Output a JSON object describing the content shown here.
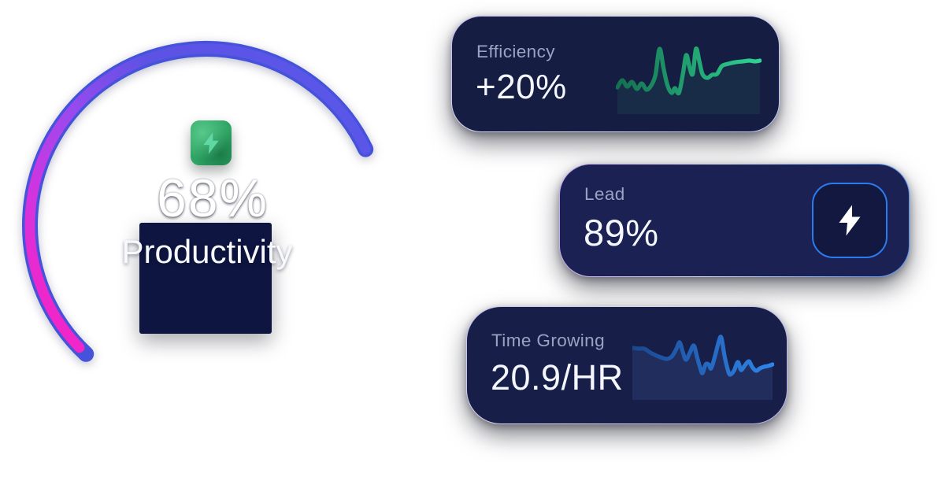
{
  "theme": {
    "page_bg": "#ffffff",
    "label_color": "#9ba2c2",
    "value_color": "#f5f7ff",
    "card_bg_efficiency": "#161d42",
    "card_bg_lead": "#1b2152",
    "card_bg_time_growing": "#171e48"
  },
  "gauge": {
    "percent": "68%",
    "title": "Productivity",
    "badge_icon": "lightning-bolt-icon",
    "colors": {
      "arc_base": "#4552da",
      "arc_top": "#5a57ea",
      "arc_upper": "#5c52e4",
      "arc_mid": "#9b49ee",
      "arc_lower": "#cf35e0",
      "arc_end": "#f026c9",
      "panel": "#0d1540",
      "badge": "#2fa564",
      "badge_bolt": "#5fd8a4"
    }
  },
  "cards": [
    {
      "id": "efficiency",
      "label": "Efficiency",
      "value": "+20%",
      "chart": {
        "type": "sparkline",
        "color_start": "#146f50",
        "color_end": "#2ed492",
        "fill": "rgba(46,212,146,0.08)",
        "points": [
          [
            2,
            58
          ],
          [
            8,
            49
          ],
          [
            14,
            57
          ],
          [
            20,
            51
          ],
          [
            26,
            60
          ],
          [
            32,
            53
          ],
          [
            38,
            61
          ],
          [
            44,
            55
          ],
          [
            49,
            42
          ],
          [
            54,
            9
          ],
          [
            59,
            34
          ],
          [
            64,
            56
          ],
          [
            69,
            65
          ],
          [
            73,
            59
          ],
          [
            78,
            65
          ],
          [
            83,
            40
          ],
          [
            87,
            17
          ],
          [
            91,
            32
          ],
          [
            95,
            41
          ],
          [
            99,
            9
          ],
          [
            103,
            24
          ],
          [
            107,
            41
          ],
          [
            113,
            46
          ],
          [
            119,
            42
          ],
          [
            125,
            41
          ],
          [
            131,
            31
          ],
          [
            139,
            28
          ],
          [
            148,
            26
          ],
          [
            157,
            25
          ],
          [
            165,
            24
          ],
          [
            172,
            25
          ],
          [
            178,
            24
          ]
        ]
      }
    },
    {
      "id": "lead",
      "label": "Lead",
      "value": "89%",
      "icon": "lightning-bolt-icon",
      "icon_border": "#2b7bf0"
    },
    {
      "id": "time-growing",
      "label": "Time Growing",
      "value": "20.9/HR",
      "chart": {
        "type": "sparkline",
        "color_start": "#1a478f",
        "color_end": "#2f85ea",
        "fill": "rgba(90,150,240,0.13)",
        "points": [
          [
            0,
            26
          ],
          [
            8,
            27
          ],
          [
            15,
            27
          ],
          [
            23,
            32
          ],
          [
            31,
            36
          ],
          [
            39,
            39
          ],
          [
            44,
            40
          ],
          [
            50,
            37
          ],
          [
            56,
            27
          ],
          [
            60,
            19
          ],
          [
            64,
            31
          ],
          [
            68,
            41
          ],
          [
            73,
            32
          ],
          [
            78,
            23
          ],
          [
            82,
            37
          ],
          [
            86,
            51
          ],
          [
            89,
            58
          ],
          [
            93,
            47
          ],
          [
            97,
            47
          ],
          [
            100,
            52
          ],
          [
            105,
            36
          ],
          [
            110,
            17
          ],
          [
            113,
            13
          ],
          [
            117,
            36
          ],
          [
            121,
            53
          ],
          [
            124,
            60
          ],
          [
            129,
            55
          ],
          [
            134,
            44
          ],
          [
            138,
            54
          ],
          [
            143,
            48
          ],
          [
            148,
            43
          ],
          [
            152,
            50
          ],
          [
            157,
            55
          ],
          [
            162,
            52
          ],
          [
            167,
            50
          ],
          [
            172,
            49
          ],
          [
            178,
            47
          ]
        ]
      }
    }
  ]
}
